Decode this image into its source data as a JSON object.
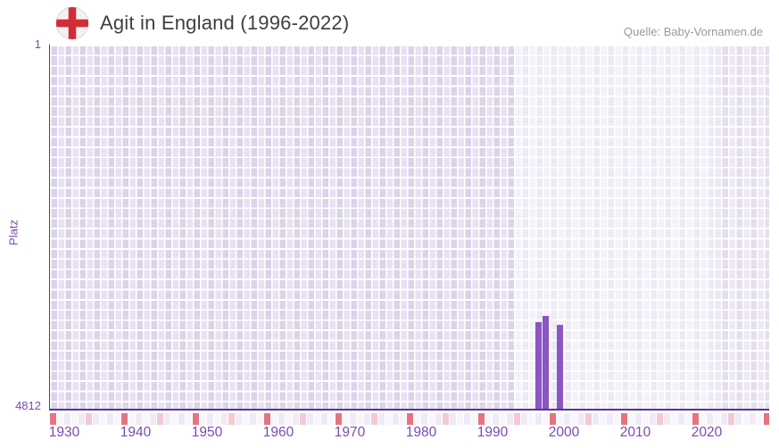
{
  "header": {
    "title": "Agit in England (1996-2022)",
    "flag_icon": "england-flag-icon",
    "source": "Quelle: Baby-Vornamen.de"
  },
  "chart_data": {
    "type": "bar",
    "title": "Agit in England (1996-2022)",
    "xlabel": "",
    "ylabel": "Platz",
    "x_ticks": [
      1930,
      1940,
      1950,
      1960,
      1970,
      1980,
      1990,
      2000,
      2010,
      2020
    ],
    "x_range": [
      1928,
      2029
    ],
    "y_axis": {
      "top_tick": "1",
      "bottom_tick": "4812",
      "min": 1,
      "max": 4812,
      "inverted": true
    },
    "points": [
      {
        "year": 1996,
        "rank": 3671
      },
      {
        "year": 1997,
        "rank": 3589
      },
      {
        "year": 1999,
        "rank": 3706
      }
    ],
    "highlight_band": {
      "start_year": 1993,
      "end_year": 2021
    },
    "legend": "none",
    "grid": "checkered-background",
    "colors": {
      "bar": "#8b55c4",
      "axis": "#5a3496",
      "tick_label": "#7c4bb0",
      "title": "#3f3f3f",
      "source_text": "#999999",
      "strip_marker_red": "#e5747e",
      "strip_marker_pink": "#f3c9d3",
      "flag_cross_red": "#d02d36"
    }
  }
}
